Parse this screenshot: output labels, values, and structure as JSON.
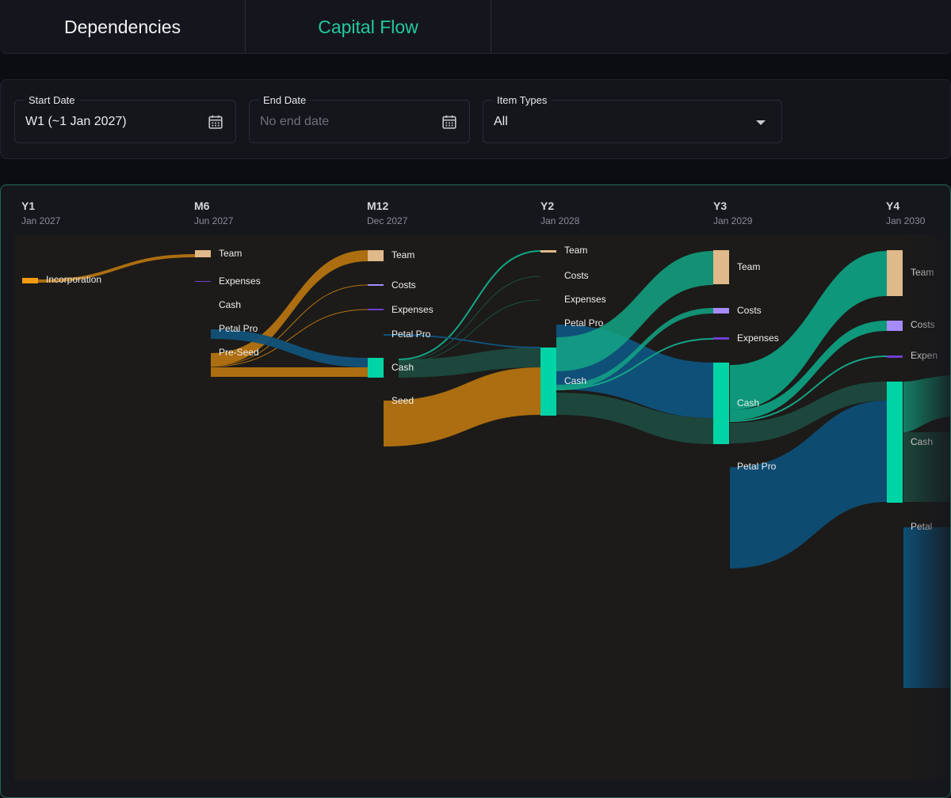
{
  "tabs": [
    {
      "label": "Dependencies",
      "active": false
    },
    {
      "label": "Capital Flow",
      "active": true
    }
  ],
  "filters": {
    "start_date": {
      "label": "Start Date",
      "value": "W1 (~1 Jan 2027)",
      "icon": "calendar-icon"
    },
    "end_date": {
      "label": "End Date",
      "placeholder": "No end date",
      "icon": "calendar-icon"
    },
    "item_types": {
      "label": "Item Types",
      "value": "All",
      "icon": "chevron-down-icon"
    }
  },
  "colors": {
    "accent": "#23c9a0",
    "team": "#e0b98a",
    "costs": "#a78bfa",
    "expenses": "#6d3fd0",
    "cash": "#00d4a5",
    "petal_pro": "#0e4d73",
    "funding": "#b47310"
  },
  "columns": [
    {
      "title": "Y1",
      "date": "Jan 2027"
    },
    {
      "title": "M6",
      "date": "Jun 2027"
    },
    {
      "title": "M12",
      "date": "Dec 2027"
    },
    {
      "title": "Y2",
      "date": "Jan 2028"
    },
    {
      "title": "Y3",
      "date": "Jan 2029"
    },
    {
      "title": "Y4",
      "date": "Jan 2030"
    }
  ],
  "nodes": {
    "y1": [
      "Incorporation"
    ],
    "m6": [
      "Team",
      "Expenses",
      "Cash",
      "Petal Pro",
      "Pre-Seed"
    ],
    "m12": [
      "Team",
      "Costs",
      "Expenses",
      "Petal Pro",
      "Cash",
      "Seed"
    ],
    "y2": [
      "Team",
      "Costs",
      "Expenses",
      "Petal Pro",
      "Cash"
    ],
    "y3": [
      "Team",
      "Costs",
      "Expenses",
      "Cash",
      "Petal Pro"
    ],
    "y4": [
      "Team",
      "Costs",
      "Expen",
      "Cash",
      "Petal"
    ]
  }
}
